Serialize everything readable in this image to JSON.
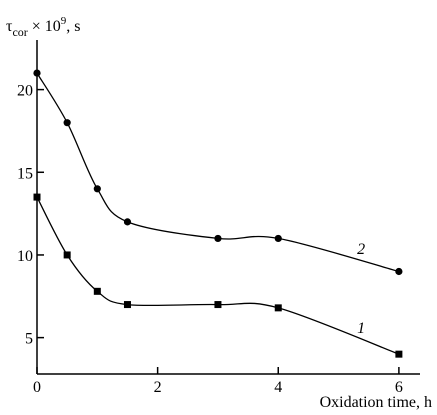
{
  "chart_data": {
    "type": "scatter",
    "title": "",
    "xlabel": "Oxidation time, h",
    "ylabel": {
      "prefix": "τ",
      "subscript": "cor",
      "suffix": " × 10",
      "superscript": "9",
      "unit": ", s"
    },
    "xlim": [
      0,
      6.35
    ],
    "ylim": [
      2.8,
      23
    ],
    "x_ticks": [
      0,
      2,
      4,
      6
    ],
    "y_ticks": [
      5,
      10,
      15,
      20
    ],
    "grid": false,
    "series": [
      {
        "name": "1",
        "marker": "square",
        "x": [
          0,
          0.5,
          1,
          1.5,
          3,
          4,
          6
        ],
        "y": [
          13.5,
          10,
          7.8,
          7,
          7,
          6.8,
          4
        ]
      },
      {
        "name": "2",
        "marker": "circle",
        "x": [
          0,
          0.5,
          1,
          1.5,
          3,
          4,
          6
        ],
        "y": [
          21,
          18,
          14,
          12,
          11,
          11,
          9
        ]
      }
    ],
    "colors": {
      "foreground": "#000000",
      "background": "#ffffff"
    }
  }
}
